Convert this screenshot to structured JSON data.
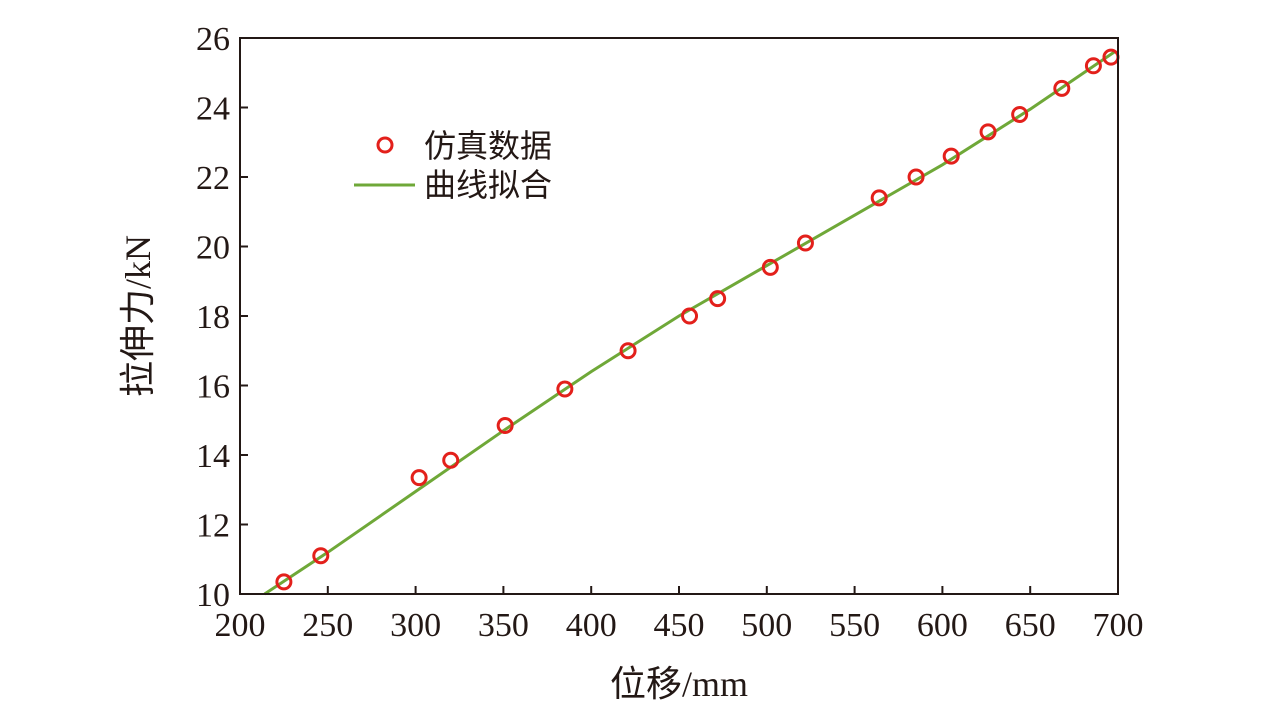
{
  "chart_data": {
    "type": "scatter",
    "xlabel": "位移/mm",
    "ylabel": "拉伸力/kN",
    "xlim": [
      200,
      700
    ],
    "ylim": [
      10,
      26
    ],
    "x_ticks": [
      200,
      250,
      300,
      350,
      400,
      450,
      500,
      550,
      600,
      650,
      700
    ],
    "y_ticks": [
      10,
      12,
      14,
      16,
      18,
      20,
      22,
      24,
      26
    ],
    "grid": false,
    "legend_position": "top-left",
    "series": [
      {
        "name": "仿真数据",
        "kind": "scatter",
        "marker": "open-circle",
        "color": "#e3201b",
        "x": [
          225,
          246,
          302,
          320,
          351,
          385,
          421,
          456,
          472,
          502,
          522,
          564,
          585,
          605,
          626,
          644,
          668,
          686,
          696
        ],
        "y": [
          10.35,
          11.1,
          13.35,
          13.85,
          14.85,
          15.9,
          17.0,
          18.0,
          18.5,
          19.4,
          20.1,
          21.4,
          22.0,
          22.6,
          23.3,
          23.8,
          24.55,
          25.2,
          25.45
        ]
      },
      {
        "name": "曲线拟合",
        "kind": "line",
        "color": "#6fa838",
        "x": [
          214,
          250,
          300,
          350,
          400,
          450,
          500,
          550,
          600,
          650,
          698
        ],
        "y": [
          10.0,
          11.2,
          12.95,
          14.7,
          16.4,
          18.0,
          19.45,
          20.9,
          22.35,
          23.95,
          25.6
        ]
      }
    ]
  }
}
